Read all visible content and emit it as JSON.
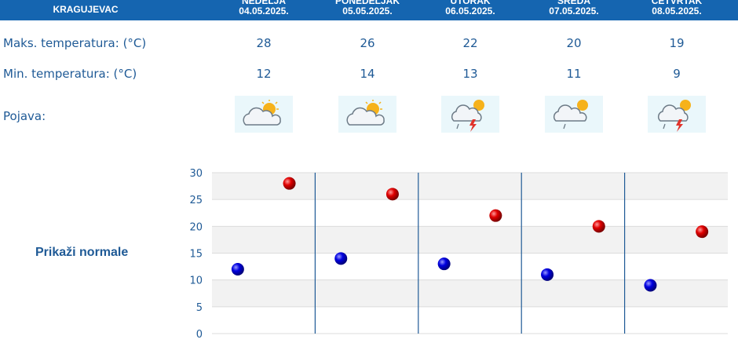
{
  "header": {
    "city": "KRAGUJEVAC"
  },
  "days": [
    {
      "name": "NEDELJA",
      "date": "04.05.2025.",
      "max": "28",
      "min": "12",
      "icon": "partly-cloudy-sun-icon"
    },
    {
      "name": "PONEDELJAK",
      "date": "05.05.2025.",
      "max": "26",
      "min": "14",
      "icon": "partly-cloudy-sun-icon"
    },
    {
      "name": "UTORAK",
      "date": "06.05.2025.",
      "max": "22",
      "min": "13",
      "icon": "thunderstorm-rain-sun-icon"
    },
    {
      "name": "SREDA",
      "date": "07.05.2025.",
      "max": "20",
      "min": "11",
      "icon": "rain-cloud-sun-icon"
    },
    {
      "name": "ČETVRTAK",
      "date": "08.05.2025.",
      "max": "19",
      "min": "9",
      "icon": "thunderstorm-rain-sun-icon"
    }
  ],
  "labels": {
    "max_temp": "Maks. temperatura: (°C)",
    "min_temp": "Min. temperatura: (°C)",
    "phenomenon": "Pojava:",
    "show_normals": "Prikaži normale"
  },
  "colors": {
    "header_bg": "#1565b0",
    "text": "#1f5a96",
    "max_marker": "#cc0000",
    "min_marker": "#0000cc",
    "separator": "#1f5a96"
  },
  "chart_data": {
    "type": "scatter",
    "categories": [
      "04.05.2025.",
      "05.05.2025.",
      "06.05.2025.",
      "07.05.2025.",
      "08.05.2025."
    ],
    "series": [
      {
        "values": [
          12,
          14,
          13,
          11,
          9
        ],
        "color": "#0000cc"
      },
      {
        "values": [
          28,
          26,
          22,
          20,
          19
        ],
        "color": "#cc0000"
      }
    ],
    "yticks": [
      0,
      5,
      10,
      15,
      20,
      25,
      30
    ],
    "ylim": [
      0,
      30
    ],
    "grid": true,
    "alternating_bands": true
  }
}
